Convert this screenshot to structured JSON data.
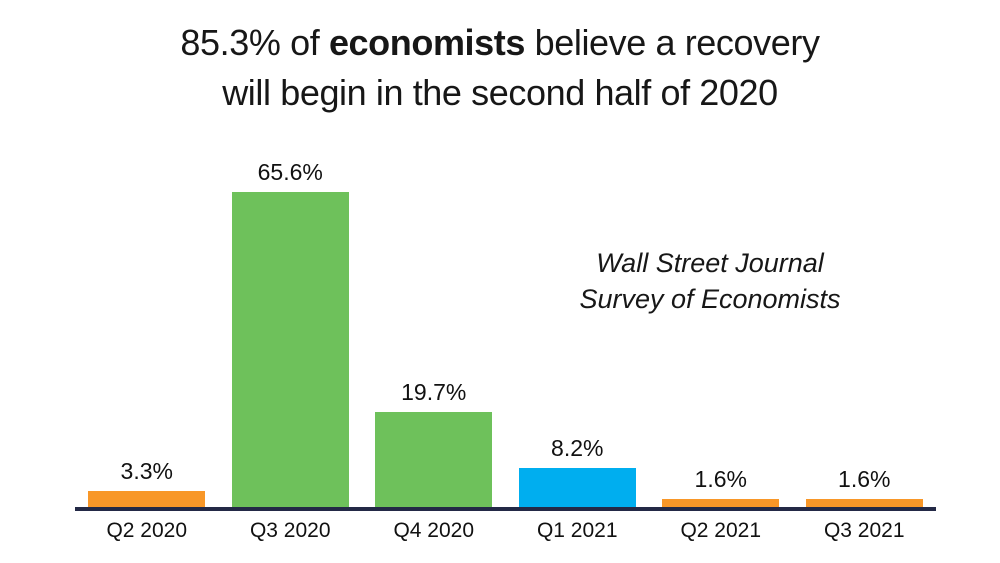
{
  "title": {
    "line1_pre": "85.3% of ",
    "line1_bold": "economists",
    "line1_post": " believe a recovery",
    "line2": "will begin in the second half of 2020"
  },
  "annotation": {
    "line1": "Wall Street Journal",
    "line2": "Survey of Economists"
  },
  "chart_data": {
    "type": "bar",
    "title": "85.3% of economists believe a recovery will begin in the second half of 2020",
    "categories": [
      "Q2 2020",
      "Q3 2020",
      "Q4 2020",
      "Q1 2021",
      "Q2 2021",
      "Q3 2021"
    ],
    "values": [
      3.3,
      65.6,
      19.7,
      8.2,
      1.6,
      1.6
    ],
    "labels": [
      "3.3%",
      "65.6%",
      "19.7%",
      "8.2%",
      "1.6%",
      "1.6%"
    ],
    "colors": [
      "#F89728",
      "#6EC15B",
      "#6EC15B",
      "#00AEEF",
      "#F89728",
      "#F89728"
    ],
    "annotation": "Wall Street Journal Survey of Economists",
    "xlabel": "",
    "ylabel": "",
    "ylim": [
      0,
      70
    ],
    "axis_color": "#232946",
    "grid": false,
    "legend": false,
    "data_labels": true
  }
}
